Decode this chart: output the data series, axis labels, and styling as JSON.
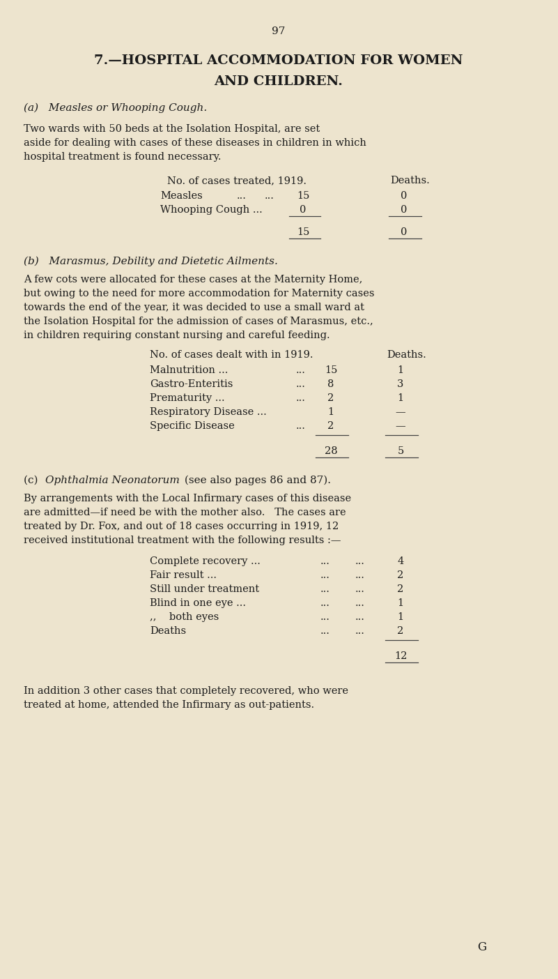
{
  "bg_color": "#ede4ce",
  "text_color": "#1a1a1a",
  "page_number": "97",
  "title_line1": "7.—HOSPITAL ACCOMMODATION FOR WOMEN",
  "title_line2": "AND CHILDREN.",
  "sec_a_header": "(a)   Measles or Whooping Cough.",
  "sec_a_para": "Two wards with 50 beds at the Isolation Hospital, are set\naside for dealing with cases of these diseases in children in which\nhospital treatment is found necessary.",
  "sec_a_th1": "No. of cases treated, 1919.",
  "sec_a_th2": "Deaths.",
  "sec_b_header": "(b)   Marasmus, Debility and Dietetic Ailments.",
  "sec_b_para": "A few cots were allocated for these cases at the Maternity Home,\nbut owing to the need for more accommodation for Maternity cases\ntowards the end of the year, it was decided to use a small ward at\nthe Isolation Hospital for the admission of cases of Marasmus, etc.,\nin children requiring constant nursing and careful feeding.",
  "sec_b_th1": "No. of cases dealt with in 1919.",
  "sec_b_th2": "Deaths.",
  "sec_c_header_plain": "(c)   ",
  "sec_c_header_italic": "Ophthalmia Neonatorum",
  "sec_c_header_rest": " (see also pages 86 and 87).",
  "sec_c_para": "By arrangements with the Local Infirmary cases of this disease\nare admitted—if need be with the mother also.   The cases are\ntreated by Dr. Fox, and out of 18 cases occurring in 1919, 12\nreceived institutional treatment with the following results :—",
  "sec_c_footer": "In addition 3 other cases that completely recovered, who were\ntreated at home, attended the Infirmary as out-patients.",
  "footer_letter": "G",
  "line_color": "#444444"
}
